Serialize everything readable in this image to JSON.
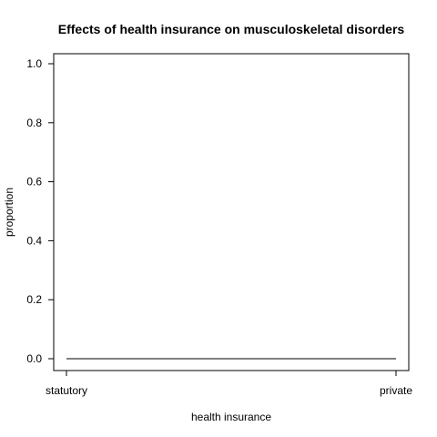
{
  "chart_data": {
    "type": "line",
    "title": "Effects of health insurance on musculoskeletal disorders",
    "xlabel": "health insurance",
    "ylabel": "proportion",
    "categories": [
      "statutory",
      "private"
    ],
    "series": [
      {
        "values": [
          0.0,
          0.0
        ]
      }
    ],
    "ylim": [
      0,
      1.0
    ],
    "yticks": [
      "0.0",
      "0.2",
      "0.4",
      "0.6",
      "0.8",
      "1.0"
    ],
    "grid": false,
    "legend": "none",
    "colors": {
      "line": "#000000",
      "axis": "#000000",
      "background": "#ffffff"
    }
  }
}
